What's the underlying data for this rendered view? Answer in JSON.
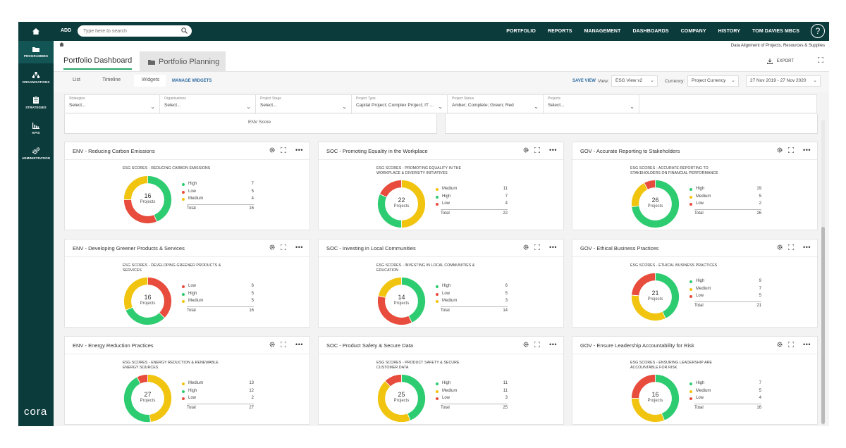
{
  "topbar": {
    "add_label": "ADD",
    "search_placeholder": "Type here to search",
    "nav": [
      "PORTFOLIO",
      "REPORTS",
      "MANAGEMENT",
      "DASHBOARDS",
      "COMPANY",
      "HISTORY",
      "TOM DAVIES MBCS"
    ],
    "help": "?"
  },
  "sidebar": {
    "items": [
      {
        "label": "PROGRAMMES",
        "icon": "folder-icon",
        "active": true
      },
      {
        "label": "ORGANISATIONS",
        "icon": "org-chart-icon"
      },
      {
        "label": "STRATEGIES",
        "icon": "clipboard-icon"
      },
      {
        "label": "KPIS",
        "icon": "bar-chart-icon"
      },
      {
        "label": "ADMINISTRATION",
        "icon": "gears-icon"
      }
    ],
    "logo": "cora"
  },
  "breadcrumb": {
    "text": "Data Alignment of Projects, Resources & Supplies"
  },
  "tabs": {
    "dashboard": "Portfolio Dashboard",
    "planning": "Portfolio Planning",
    "export": "EXPORT"
  },
  "viewbar": {
    "tabs": [
      "List",
      "Timeline",
      "Widgets"
    ],
    "manage": "MANAGE WIDGETS",
    "save_view": "SAVE VIEW",
    "view_label": "View:",
    "view_value": "ESG View v2",
    "currency_label": "Currency:",
    "currency_value": "Project Currency",
    "date_range": "27 Nov 2019 - 27 Nov 2020"
  },
  "filters": [
    {
      "label": "Strategies",
      "value": "Select..."
    },
    {
      "label": "Organisations",
      "value": "Select..."
    },
    {
      "label": "Project Stage",
      "value": "Select..."
    },
    {
      "label": "Project Type",
      "value": "Capital Project; Complex Project; IT ..."
    },
    {
      "label": "Project Status",
      "value": "Amber; Complete; Green; Red"
    },
    {
      "label": "Projects",
      "value": "Select..."
    }
  ],
  "partial_widget": {
    "label": "ENV Score"
  },
  "colors": {
    "High": "#2ecc71",
    "Medium": "#f1c40f",
    "Low": "#e74c3c",
    "brand": "#0c3b3c"
  },
  "widgets": [
    {
      "title": "ENV - Reducing Carbon Emissions",
      "subtitle": "ESG SCORES - REDUCING CARBON EMISSIONS",
      "center": "16",
      "center_label": "Projects",
      "chart_data": {
        "type": "pie",
        "categories": [
          "High",
          "Low",
          "Medium"
        ],
        "values": [
          7,
          5,
          4
        ]
      },
      "legend": [
        {
          "name": "High",
          "value": "7"
        },
        {
          "name": "Low",
          "value": "5"
        },
        {
          "name": "Medium",
          "value": "4"
        }
      ],
      "total_label": "Total",
      "total": "16"
    },
    {
      "title": "SOC - Promoting Equality in the Workplace",
      "subtitle": "ESG SCORES - PROMOTING EQUALITY IN THE WORKPLACE & DIVERSITY INITIATIVES",
      "center": "22",
      "center_label": "Projects",
      "chart_data": {
        "type": "pie",
        "categories": [
          "Medium",
          "High",
          "Low"
        ],
        "values": [
          11,
          7,
          4
        ]
      },
      "legend": [
        {
          "name": "Medium",
          "value": "11"
        },
        {
          "name": "High",
          "value": "7"
        },
        {
          "name": "Low",
          "value": "4"
        }
      ],
      "total_label": "Total",
      "total": "22"
    },
    {
      "title": "GOV - Accurate Reporting to Stakeholders",
      "subtitle": "ESG SCORES - ACCURATE REPORTING TO STAKEHOLDERS ON FINANCIAL PERFORMANCE",
      "center": "26",
      "center_label": "Projects",
      "chart_data": {
        "type": "pie",
        "categories": [
          "High",
          "Medium",
          "Low"
        ],
        "values": [
          19,
          5,
          2
        ]
      },
      "legend": [
        {
          "name": "High",
          "value": "19"
        },
        {
          "name": "Medium",
          "value": "5"
        },
        {
          "name": "Low",
          "value": "2"
        }
      ],
      "total_label": "Total",
      "total": "26"
    },
    {
      "title": "ENV - Developing Greener Products & Services",
      "subtitle": "ESG SCORES - DEVELOPING GREENER PRODUCTS & SERVICES",
      "center": "16",
      "center_label": "Projects",
      "chart_data": {
        "type": "pie",
        "categories": [
          "Low",
          "High",
          "Medium"
        ],
        "values": [
          6,
          5,
          5
        ]
      },
      "legend": [
        {
          "name": "Low",
          "value": "6"
        },
        {
          "name": "High",
          "value": "5"
        },
        {
          "name": "Medium",
          "value": "5"
        }
      ],
      "total_label": "Total",
      "total": "16"
    },
    {
      "title": "SOC - Investing in Local Communities",
      "subtitle": "ESG SCORES - INVESTING IN LOCAL COMMUNITIES & EDUCATION",
      "center": "14",
      "center_label": "Projects",
      "chart_data": {
        "type": "pie",
        "categories": [
          "High",
          "Low",
          "Medium"
        ],
        "values": [
          6,
          5,
          3
        ]
      },
      "legend": [
        {
          "name": "High",
          "value": "6"
        },
        {
          "name": "Low",
          "value": "5"
        },
        {
          "name": "Medium",
          "value": "3"
        }
      ],
      "total_label": "Total",
      "total": "14"
    },
    {
      "title": "GOV - Ethical Business Practices",
      "subtitle": "ESG SCORES - ETHICAL BUSINESS PRACTICES",
      "center": "21",
      "center_label": "Projects",
      "chart_data": {
        "type": "pie",
        "categories": [
          "High",
          "Medium",
          "Low"
        ],
        "values": [
          9,
          7,
          5
        ]
      },
      "legend": [
        {
          "name": "High",
          "value": "9"
        },
        {
          "name": "Medium",
          "value": "7"
        },
        {
          "name": "Low",
          "value": "5"
        }
      ],
      "total_label": "Total",
      "total": "21"
    },
    {
      "title": "ENV - Energy Reduction Practices",
      "subtitle": "ESG SCORES - ENERGY REDUCTION & RENEWABLE ENERGY SOURCES",
      "center": "27",
      "center_label": "Projects",
      "chart_data": {
        "type": "pie",
        "categories": [
          "Medium",
          "High",
          "Low"
        ],
        "values": [
          13,
          12,
          2
        ]
      },
      "legend": [
        {
          "name": "Medium",
          "value": "13"
        },
        {
          "name": "High",
          "value": "12"
        },
        {
          "name": "Low",
          "value": "2"
        }
      ],
      "total_label": "Total",
      "total": "27"
    },
    {
      "title": "SOC - Product Safety & Secure Data",
      "subtitle": "ESG SCORES - PRODUCT SAFETY & SECURE CUSTOMER DATA",
      "center": "25",
      "center_label": "Projects",
      "chart_data": {
        "type": "pie",
        "categories": [
          "High",
          "Medium",
          "Low"
        ],
        "values": [
          11,
          11,
          3
        ]
      },
      "legend": [
        {
          "name": "High",
          "value": "11"
        },
        {
          "name": "Medium",
          "value": "11"
        },
        {
          "name": "Low",
          "value": "3"
        }
      ],
      "total_label": "Total",
      "total": "25"
    },
    {
      "title": "GOV - Ensure Leadership Accountability for Risk",
      "subtitle": "ESG SCORES - ENSURING LEADERSHIP ARE ACCOUNTABLE FOR RISK",
      "center": "16",
      "center_label": "Projects",
      "chart_data": {
        "type": "pie",
        "categories": [
          "High",
          "Medium",
          "Low"
        ],
        "values": [
          7,
          5,
          4
        ]
      },
      "legend": [
        {
          "name": "High",
          "value": "7"
        },
        {
          "name": "Medium",
          "value": "5"
        },
        {
          "name": "Low",
          "value": "4"
        }
      ],
      "total_label": "Total",
      "total": "16"
    }
  ]
}
